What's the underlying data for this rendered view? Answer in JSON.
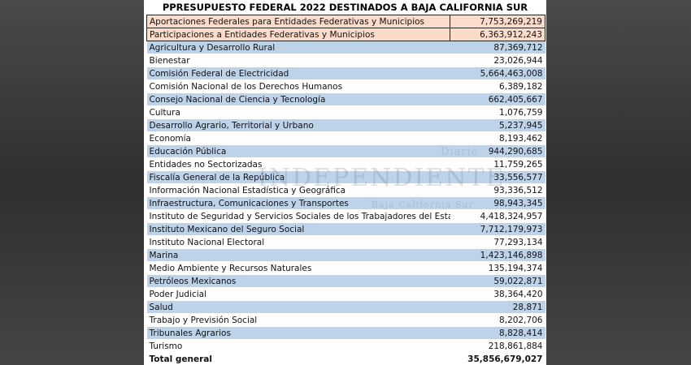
{
  "title": "PPRESUPUESTO FEDERAL 2022 DESTINADOS A BAJA CALIFORNIA SUR",
  "highlight_rows": [
    {
      "name": "Aportaciones Federales para Entidades Federativas y Municipios",
      "value": "7,753,269,219"
    },
    {
      "name": "Participaciones a Entidades Federativas y Municipios",
      "value": "6,363,912,243"
    }
  ],
  "rows": [
    {
      "name": "Agricultura y Desarrollo Rural",
      "value": "87,369,712"
    },
    {
      "name": "Bienestar",
      "value": "23,026,944"
    },
    {
      "name": "Comisión Federal de Electricidad",
      "value": "5,664,463,008"
    },
    {
      "name": "Comisión Nacional de los Derechos Humanos",
      "value": "6,389,182"
    },
    {
      "name": "Consejo Nacional de Ciencia y Tecnología",
      "value": "662,405,667"
    },
    {
      "name": "Cultura",
      "value": "1,076,759"
    },
    {
      "name": "Desarrollo Agrario, Territorial y Urbano",
      "value": "5,237,945"
    },
    {
      "name": "Economía",
      "value": "8,193,462"
    },
    {
      "name": "Educación Pública",
      "value": "944,290,685"
    },
    {
      "name": "Entidades no Sectorizadas",
      "value": "11,759,265"
    },
    {
      "name": "Fiscalía General de la República",
      "value": "33,556,577"
    },
    {
      "name": "Información Nacional Estadística y Geográfica",
      "value": "93,336,512"
    },
    {
      "name": "Infraestructura, Comunicaciones y Transportes",
      "value": "98,943,345"
    },
    {
      "name": "Instituto de Seguridad y Servicios Sociales de los Trabajadores del Estado",
      "value": "4,418,324,957"
    },
    {
      "name": "Instituto Mexicano del Seguro Social",
      "value": "7,712,179,973"
    },
    {
      "name": "Instituto Nacional Electoral",
      "value": "77,293,134"
    },
    {
      "name": "Marina",
      "value": "1,423,146,898"
    },
    {
      "name": "Medio Ambiente y Recursos Naturales",
      "value": "135,194,374"
    },
    {
      "name": "Petróleos Mexicanos",
      "value": "59,022,871"
    },
    {
      "name": "Poder Judicial",
      "value": "38,364,420"
    },
    {
      "name": "Salud",
      "value": "28,871"
    },
    {
      "name": "Trabajo y Previsión Social",
      "value": "8,202,706"
    },
    {
      "name": "Tribunales Agrarios",
      "value": "8,828,414"
    },
    {
      "name": "Turismo",
      "value": "218,861,884"
    }
  ],
  "total": {
    "name": "Total general",
    "value": "35,856,679,027"
  },
  "watermark": {
    "top": "Diario",
    "main": "INDEPENDIENTE",
    "bottom": "Baja California Sur"
  },
  "colors": {
    "blue_row": "#bcd3ea",
    "highlight_row": "#fbdccb",
    "background": "#3d3d3d"
  }
}
